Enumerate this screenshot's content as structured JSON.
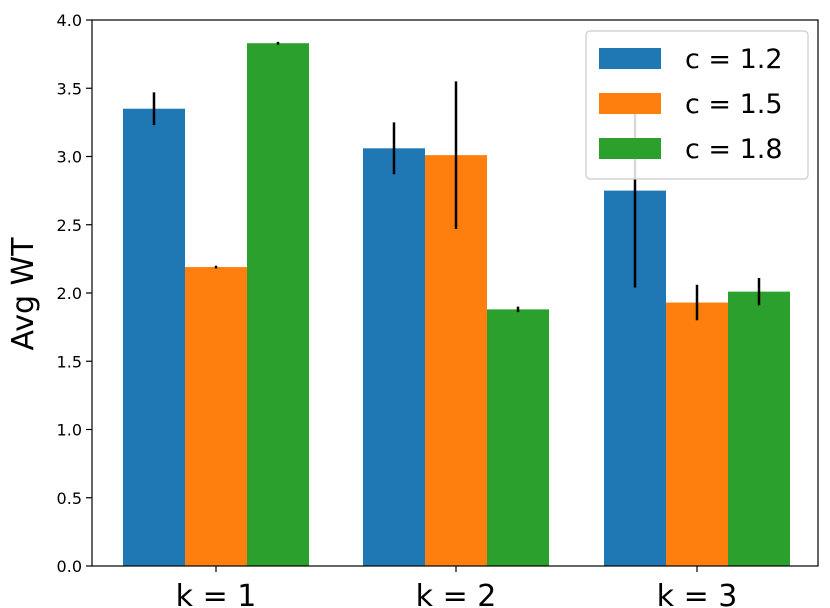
{
  "chart_data": {
    "type": "bar",
    "ylabel": "Avg WT",
    "xlabel": "",
    "ylim": [
      0,
      4.0
    ],
    "yticks": [
      "0.0",
      "0.5",
      "1.0",
      "1.5",
      "2.0",
      "2.5",
      "3.0",
      "3.5",
      "4.0"
    ],
    "categories": [
      "k = 1",
      "k = 2",
      "k = 3"
    ],
    "series": [
      {
        "name": "c = 1.2",
        "color": "#1f77b4",
        "values": [
          3.35,
          3.06,
          2.75
        ],
        "errors": [
          0.12,
          0.19,
          0.71
        ]
      },
      {
        "name": "c = 1.5",
        "color": "#ff7f0e",
        "values": [
          2.19,
          3.01,
          1.93
        ],
        "errors": [
          0.01,
          0.54,
          0.13
        ]
      },
      {
        "name": "c = 1.8",
        "color": "#2ca02c",
        "values": [
          3.83,
          1.88,
          2.01
        ],
        "errors": [
          0.01,
          0.02,
          0.1
        ]
      }
    ],
    "legend_position": "top-right",
    "grid": false
  }
}
